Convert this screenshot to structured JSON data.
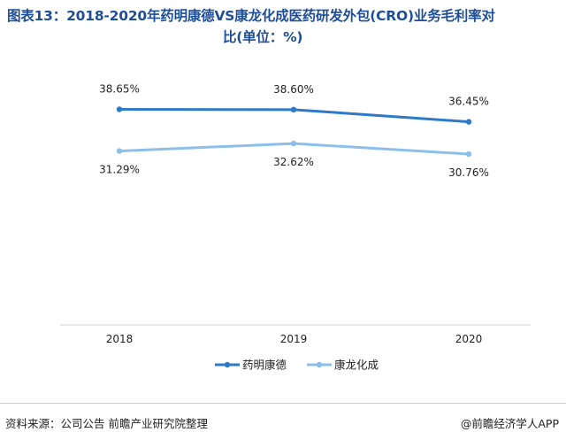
{
  "header": {
    "title_line1": "图表13：2018-2020年药明康德VS康龙化成医药研发外包(CRO)业务毛利率对",
    "title_line2": "比(单位：%)"
  },
  "footer": {
    "source": "资料来源：公司公告 前瞻产业研究院整理",
    "brand": "@前瞻经济学人APP"
  },
  "chart_data": {
    "type": "line",
    "title": "2018-2020年药明康德VS康龙化成医药研发外包(CRO)业务毛利率对比(单位：%)",
    "categories": [
      "2018",
      "2019",
      "2020"
    ],
    "series": [
      {
        "name": "药明康德",
        "values": [
          38.65,
          38.6,
          36.45
        ],
        "labels": [
          "38.65%",
          "38.60%",
          "36.45%"
        ],
        "color": "#2f79c9"
      },
      {
        "name": "康龙化成",
        "values": [
          31.29,
          32.62,
          30.76
        ],
        "labels": [
          "31.29%",
          "32.62%",
          "30.76%"
        ],
        "color": "#8cc0ea"
      }
    ],
    "grid": false,
    "legend": "bottom"
  }
}
